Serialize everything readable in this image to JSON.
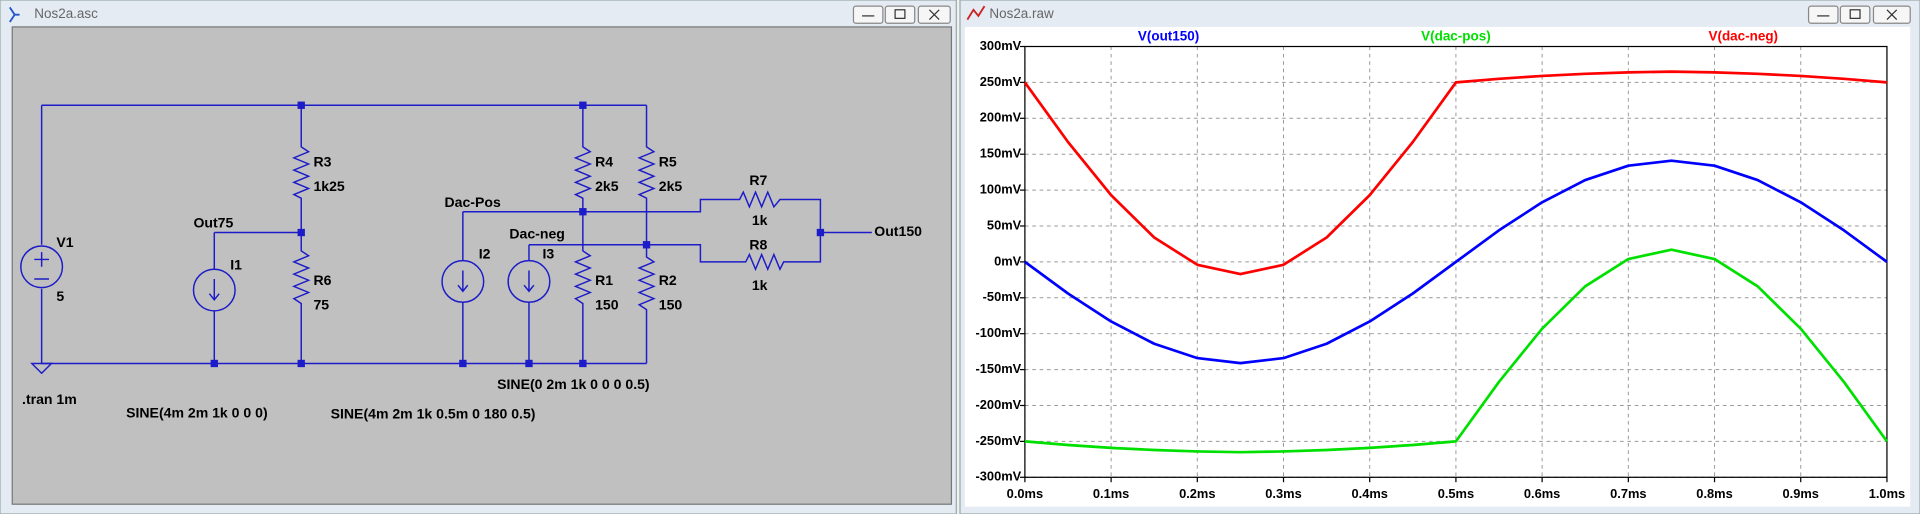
{
  "schematic_window": {
    "title": "Nos2a.asc",
    "labels": [
      "V1",
      "5",
      "R3",
      "1k25",
      "Out75",
      "I1",
      "R6",
      "75",
      "Dac-Pos",
      "R4",
      "2k5",
      "R5",
      "2k5",
      "R7",
      "1k",
      "Dac-neg",
      "I2",
      "I3",
      "R1",
      "150",
      "R2",
      "150",
      "R8",
      "1k",
      "Out150",
      ".tran 1m",
      "SINE(4m 2m 1k 0 0 0)",
      "SINE(4m 2m 1k 0.5m 0 180 0.5)",
      "SINE(0 2m 1k 0 0 0 0.5)"
    ]
  },
  "plot_window": {
    "title": "Nos2a.raw"
  },
  "chart_data": {
    "type": "line",
    "x": [
      0,
      0.05,
      0.1,
      0.15,
      0.2,
      0.25,
      0.3,
      0.35,
      0.4,
      0.45,
      0.5,
      0.55,
      0.6,
      0.65,
      0.7,
      0.75,
      0.8,
      0.85,
      0.9,
      0.95,
      1.0
    ],
    "series": [
      {
        "name": "V(out150)",
        "color": "#0000ff",
        "values": [
          0,
          -44,
          -83,
          -114,
          -134,
          -141,
          -134,
          -114,
          -83,
          -44,
          0,
          44,
          83,
          114,
          134,
          141,
          134,
          114,
          83,
          44,
          0
        ]
      },
      {
        "name": "V(dac-pos)",
        "color": "#00e000",
        "values": [
          -250,
          -255,
          -259,
          -262,
          -264,
          -265,
          -264,
          -262,
          -259,
          -255,
          -250,
          -167,
          -93,
          -34,
          4,
          17,
          4,
          -34,
          -93,
          -167,
          -250
        ]
      },
      {
        "name": "V(dac-neg)",
        "color": "#ff0000",
        "values": [
          250,
          167,
          93,
          34,
          -4,
          -17,
          -4,
          34,
          93,
          167,
          250,
          255,
          259,
          262,
          264,
          265,
          264,
          262,
          259,
          255,
          250
        ]
      }
    ],
    "xlim": [
      0,
      1.0
    ],
    "xticks": [
      {
        "value": 0,
        "label": "0.0ms"
      },
      {
        "value": 0.1,
        "label": "0.1ms"
      },
      {
        "value": 0.2,
        "label": "0.2ms"
      },
      {
        "value": 0.3,
        "label": "0.3ms"
      },
      {
        "value": 0.4,
        "label": "0.4ms"
      },
      {
        "value": 0.5,
        "label": "0.5ms"
      },
      {
        "value": 0.6,
        "label": "0.6ms"
      },
      {
        "value": 0.7,
        "label": "0.7ms"
      },
      {
        "value": 0.8,
        "label": "0.8ms"
      },
      {
        "value": 0.9,
        "label": "0.9ms"
      },
      {
        "value": 1.0,
        "label": "1.0ms"
      }
    ],
    "ylim": [
      -300,
      300
    ],
    "yticks": [
      {
        "value": 300,
        "label": "300mV"
      },
      {
        "value": 250,
        "label": "250mV"
      },
      {
        "value": 200,
        "label": "200mV"
      },
      {
        "value": 150,
        "label": "150mV"
      },
      {
        "value": 100,
        "label": "100mV"
      },
      {
        "value": 50,
        "label": "50mV"
      },
      {
        "value": 0,
        "label": "0mV"
      },
      {
        "value": -50,
        "label": "-50mV"
      },
      {
        "value": -100,
        "label": "-100mV"
      },
      {
        "value": -150,
        "label": "-150mV"
      },
      {
        "value": -200,
        "label": "-200mV"
      },
      {
        "value": -250,
        "label": "-250mV"
      },
      {
        "value": -300,
        "label": "-300mV"
      }
    ],
    "grid": true
  }
}
